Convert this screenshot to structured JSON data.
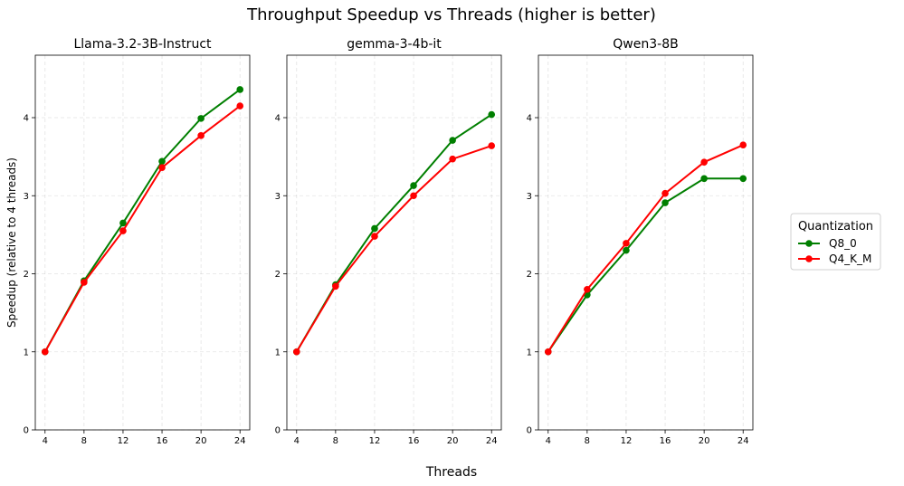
{
  "figure": {
    "title": "Throughput Speedup vs Threads (higher is better)",
    "xlabel": "Threads",
    "ylabel": "Speedup (relative to 4 threads)"
  },
  "colors": {
    "Q8_0": "#007f00",
    "Q4_K_M": "#ff0000"
  },
  "legend": {
    "title": "Quantization",
    "placement": "right-center",
    "entries": [
      "Q8_0",
      "Q4_K_M"
    ]
  },
  "chart_data": [
    {
      "type": "line",
      "title": "Llama-3.2-3B-Instruct",
      "x": [
        4,
        8,
        12,
        16,
        20,
        24
      ],
      "xticks": [
        4,
        8,
        12,
        16,
        20,
        24
      ],
      "yticks": [
        0,
        1,
        2,
        3,
        4
      ],
      "xlim": [
        3,
        25
      ],
      "ylim": [
        0,
        4.8
      ],
      "grid": true,
      "series": [
        {
          "name": "Q8_0",
          "values": [
            1.0,
            1.91,
            2.65,
            3.44,
            3.99,
            4.36
          ]
        },
        {
          "name": "Q4_K_M",
          "values": [
            1.0,
            1.89,
            2.55,
            3.36,
            3.77,
            4.15
          ]
        }
      ]
    },
    {
      "type": "line",
      "title": "gemma-3-4b-it",
      "x": [
        4,
        8,
        12,
        16,
        20,
        24
      ],
      "xticks": [
        4,
        8,
        12,
        16,
        20,
        24
      ],
      "yticks": [
        0,
        1,
        2,
        3,
        4
      ],
      "xlim": [
        3,
        25
      ],
      "ylim": [
        0,
        4.8
      ],
      "grid": true,
      "series": [
        {
          "name": "Q8_0",
          "values": [
            1.0,
            1.86,
            2.58,
            3.13,
            3.71,
            4.04
          ]
        },
        {
          "name": "Q4_K_M",
          "values": [
            1.0,
            1.84,
            2.48,
            3.0,
            3.47,
            3.64
          ]
        }
      ]
    },
    {
      "type": "line",
      "title": "Qwen3-8B",
      "x": [
        4,
        8,
        12,
        16,
        20,
        24
      ],
      "xticks": [
        4,
        8,
        12,
        16,
        20,
        24
      ],
      "yticks": [
        0,
        1,
        2,
        3,
        4
      ],
      "xlim": [
        3,
        25
      ],
      "ylim": [
        0,
        4.8
      ],
      "grid": true,
      "series": [
        {
          "name": "Q8_0",
          "values": [
            1.0,
            1.73,
            2.3,
            2.91,
            3.22,
            3.22
          ]
        },
        {
          "name": "Q4_K_M",
          "values": [
            1.0,
            1.8,
            2.39,
            3.03,
            3.43,
            3.65
          ]
        }
      ]
    }
  ]
}
